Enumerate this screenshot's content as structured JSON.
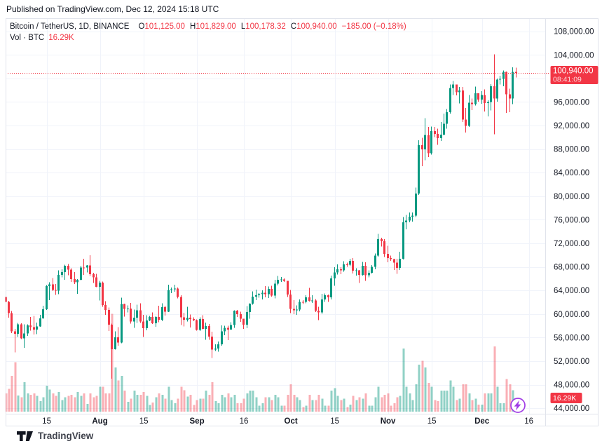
{
  "header": {
    "published": "Published on TradingView.com, Dec 12, 2024 15:18 UTC"
  },
  "legend": {
    "symbol_title": "Bitcoin / TetherUS, 1D, BINANCE",
    "ohlc": [
      {
        "label": "O",
        "value": "101,125.00"
      },
      {
        "label": "H",
        "value": "101,829.00"
      },
      {
        "label": "L",
        "value": "100,178.32"
      },
      {
        "label": "C",
        "value": "100,940.00"
      }
    ],
    "change": "−185.00 (−0.18%)",
    "volume_label": "Vol · BTC",
    "volume_value": "16.29K"
  },
  "price_label": {
    "price": "100,940.00",
    "countdown": "08:41:09"
  },
  "volume_axis_label": "16.29K",
  "price_scale": {
    "ticks": [
      108000,
      104000,
      100000,
      96000,
      92000,
      88000,
      84000,
      80000,
      76000,
      72000,
      68000,
      64000,
      60000,
      56000,
      52000,
      48000,
      44000
    ],
    "hidden_tick": 100000
  },
  "time_axis": {
    "ticks": [
      {
        "label": "15",
        "i": 13,
        "bold": false
      },
      {
        "label": "Aug",
        "i": 30,
        "bold": true
      },
      {
        "label": "15",
        "i": 44,
        "bold": false
      },
      {
        "label": "Sep",
        "i": 61,
        "bold": true
      },
      {
        "label": "16",
        "i": 76,
        "bold": false
      },
      {
        "label": "Oct",
        "i": 91,
        "bold": true
      },
      {
        "label": "15",
        "i": 105,
        "bold": false
      },
      {
        "label": "Nov",
        "i": 122,
        "bold": true
      },
      {
        "label": "15",
        "i": 136,
        "bold": false
      },
      {
        "label": "Dec",
        "i": 152,
        "bold": true
      },
      {
        "label": "16",
        "i": 167,
        "bold": false
      }
    ]
  },
  "footer": {
    "brand": "TradingView"
  },
  "colors": {
    "up": "#089981",
    "down": "#f23645",
    "up_vol": "rgba(8,153,129,0.45)",
    "down_vol": "rgba(242,54,69,0.40)",
    "grid": "#f0f3fa",
    "frame": "#e0e3eb",
    "text": "#131722",
    "accent": "#f23645",
    "purple": "#a13ce6"
  },
  "chart_data": {
    "type": "candlestick",
    "title": "Bitcoin / TetherUS, 1D, BINANCE",
    "symbol": "BTC/USDT",
    "interval": "1D",
    "exchange": "BINANCE",
    "start_date": "2024-07-02",
    "frequency": "daily",
    "last_price": 100940,
    "price_axis": {
      "min": 44000,
      "max": 108000,
      "step": 4000
    },
    "volume_unit": "K BTC",
    "last_volume": 16.29,
    "legend_position": "top-left",
    "grid": true,
    "columns": [
      "open",
      "high",
      "low",
      "close",
      "volume_kbtc"
    ],
    "candles": [
      [
        62900,
        63300,
        61700,
        62030,
        28
      ],
      [
        62030,
        62250,
        59400,
        60170,
        35
      ],
      [
        60170,
        60480,
        56780,
        57040,
        55
      ],
      [
        57040,
        57500,
        53500,
        56660,
        76
      ],
      [
        56660,
        58480,
        56080,
        58240,
        25
      ],
      [
        58240,
        58450,
        55720,
        55850,
        22
      ],
      [
        55850,
        58240,
        54260,
        56700,
        45
      ],
      [
        56700,
        58250,
        56280,
        58050,
        28
      ],
      [
        58050,
        59470,
        57170,
        57740,
        26
      ],
      [
        57740,
        59650,
        56540,
        57340,
        28
      ],
      [
        57340,
        58530,
        56570,
        57900,
        24
      ],
      [
        57900,
        59850,
        57830,
        59230,
        16
      ],
      [
        59230,
        61420,
        59210,
        60830,
        22
      ],
      [
        60830,
        64900,
        60670,
        64740,
        40
      ],
      [
        64740,
        65400,
        62370,
        65050,
        34
      ],
      [
        65050,
        66130,
        63900,
        64090,
        28
      ],
      [
        64090,
        65100,
        63250,
        63970,
        24
      ],
      [
        63970,
        67400,
        63350,
        66660,
        30
      ],
      [
        66660,
        67620,
        66250,
        67140,
        18
      ],
      [
        67140,
        68370,
        65780,
        68160,
        22
      ],
      [
        68160,
        68490,
        66600,
        67530,
        24
      ],
      [
        67530,
        67750,
        65450,
        65930,
        26
      ],
      [
        65930,
        67100,
        65080,
        65370,
        22
      ],
      [
        65370,
        65950,
        63450,
        65780,
        30
      ],
      [
        65780,
        68200,
        65730,
        67910,
        24
      ],
      [
        67910,
        69400,
        66650,
        67900,
        28
      ],
      [
        67900,
        68330,
        67060,
        68250,
        12
      ],
      [
        68250,
        69980,
        66450,
        66780,
        28
      ],
      [
        66780,
        67000,
        65300,
        66200,
        22
      ],
      [
        66200,
        66800,
        64530,
        64620,
        24
      ],
      [
        64620,
        65600,
        62300,
        65350,
        38
      ],
      [
        65350,
        65480,
        61250,
        61500,
        38
      ],
      [
        61500,
        62200,
        59850,
        60700,
        28
      ],
      [
        60700,
        61100,
        57130,
        58160,
        28
      ],
      [
        58160,
        58350,
        49000,
        54020,
        150
      ],
      [
        54020,
        57050,
        53950,
        56030,
        68
      ],
      [
        56030,
        57740,
        54590,
        55130,
        48
      ],
      [
        55130,
        62750,
        55030,
        61710,
        55
      ],
      [
        61710,
        61760,
        59560,
        60880,
        32
      ],
      [
        60880,
        61440,
        60250,
        60940,
        15
      ],
      [
        60940,
        61880,
        58350,
        58710,
        20
      ],
      [
        58710,
        60720,
        57660,
        59350,
        32
      ],
      [
        59350,
        61580,
        58490,
        60600,
        26
      ],
      [
        60600,
        61800,
        58480,
        58740,
        26
      ],
      [
        58740,
        59850,
        56100,
        57560,
        30
      ],
      [
        57560,
        59820,
        57250,
        58890,
        24
      ],
      [
        58890,
        59670,
        58790,
        59490,
        10
      ],
      [
        59490,
        60250,
        58330,
        58440,
        14
      ],
      [
        58440,
        59620,
        57850,
        59480,
        22
      ],
      [
        59480,
        61400,
        58600,
        59010,
        28
      ],
      [
        59010,
        61830,
        58800,
        61170,
        26
      ],
      [
        61170,
        61420,
        59750,
        60380,
        20
      ],
      [
        60380,
        64950,
        60340,
        64090,
        38
      ],
      [
        64090,
        64500,
        63530,
        64180,
        18
      ],
      [
        64180,
        65000,
        63780,
        64300,
        13
      ],
      [
        64300,
        64480,
        62650,
        62880,
        20
      ],
      [
        62880,
        63210,
        58100,
        59440,
        38
      ],
      [
        59440,
        60200,
        57890,
        59030,
        33
      ],
      [
        59030,
        61200,
        58750,
        59360,
        23
      ],
      [
        59360,
        59900,
        57700,
        59120,
        26
      ],
      [
        59120,
        59450,
        58760,
        58970,
        10
      ],
      [
        58970,
        59070,
        57150,
        57300,
        18
      ],
      [
        57300,
        59430,
        57130,
        59130,
        20
      ],
      [
        59130,
        59800,
        57420,
        57490,
        20
      ],
      [
        57490,
        58520,
        55600,
        57970,
        32
      ],
      [
        57970,
        58330,
        55640,
        56180,
        26
      ],
      [
        56180,
        57010,
        52550,
        53950,
        45
      ],
      [
        53950,
        54850,
        53740,
        54160,
        16
      ],
      [
        54160,
        55320,
        53620,
        54870,
        13
      ],
      [
        54870,
        58040,
        54600,
        57040,
        26
      ],
      [
        57040,
        58030,
        56410,
        57640,
        22
      ],
      [
        57640,
        58000,
        55550,
        57340,
        28
      ],
      [
        57340,
        58580,
        57330,
        58130,
        22
      ],
      [
        58130,
        60620,
        57630,
        60570,
        26
      ],
      [
        60570,
        60660,
        59470,
        60000,
        13
      ],
      [
        60000,
        60380,
        58690,
        59180,
        13
      ],
      [
        59180,
        59200,
        57500,
        58210,
        20
      ],
      [
        58210,
        61320,
        57610,
        60310,
        28
      ],
      [
        60310,
        61790,
        59180,
        61760,
        32
      ],
      [
        61760,
        63850,
        61550,
        62940,
        32
      ],
      [
        62940,
        64130,
        62350,
        63200,
        22
      ],
      [
        63200,
        63560,
        62760,
        63350,
        9
      ],
      [
        63350,
        64000,
        62450,
        63580,
        13
      ],
      [
        63580,
        64750,
        62820,
        63340,
        22
      ],
      [
        63340,
        64680,
        62700,
        64270,
        22
      ],
      [
        64270,
        64820,
        62950,
        63150,
        18
      ],
      [
        63150,
        65800,
        62670,
        65180,
        26
      ],
      [
        65180,
        66490,
        64850,
        65790,
        22
      ],
      [
        65790,
        66260,
        65440,
        65890,
        9
      ],
      [
        65890,
        66070,
        65430,
        65630,
        9
      ],
      [
        65630,
        65630,
        62860,
        63330,
        26
      ],
      [
        63330,
        64100,
        60170,
        60840,
        42
      ],
      [
        60840,
        62380,
        60000,
        60650,
        26
      ],
      [
        60650,
        61450,
        59850,
        60750,
        22
      ],
      [
        60750,
        62480,
        60460,
        62080,
        18
      ],
      [
        62080,
        62370,
        61690,
        62060,
        7
      ],
      [
        62060,
        63200,
        61810,
        62820,
        9
      ],
      [
        62820,
        64450,
        62100,
        62220,
        26
      ],
      [
        62220,
        63200,
        61860,
        62280,
        18
      ],
      [
        62280,
        62540,
        60310,
        60580,
        18
      ],
      [
        60580,
        61200,
        58950,
        60280,
        26
      ],
      [
        60280,
        63400,
        60060,
        62450,
        20
      ],
      [
        62450,
        63480,
        62050,
        63190,
        9
      ],
      [
        63190,
        63290,
        62050,
        62850,
        9
      ],
      [
        62850,
        66500,
        62450,
        66050,
        32
      ],
      [
        66050,
        67950,
        64800,
        67040,
        36
      ],
      [
        67040,
        68420,
        66720,
        67620,
        24
      ],
      [
        67620,
        67940,
        66750,
        67400,
        18
      ],
      [
        67400,
        68980,
        67170,
        68420,
        20
      ],
      [
        68420,
        68700,
        68010,
        68370,
        7
      ],
      [
        68370,
        69400,
        68110,
        69030,
        11
      ],
      [
        69030,
        69520,
        66850,
        67370,
        24
      ],
      [
        67370,
        67800,
        66550,
        67420,
        18
      ],
      [
        67420,
        67470,
        65260,
        66650,
        22
      ],
      [
        66650,
        68850,
        66500,
        68170,
        20
      ],
      [
        68170,
        68800,
        65600,
        66600,
        28
      ],
      [
        66600,
        67430,
        66200,
        67020,
        9
      ],
      [
        67020,
        68300,
        66880,
        68000,
        9
      ],
      [
        68000,
        70300,
        67580,
        69910,
        22
      ],
      [
        69910,
        73600,
        69740,
        72720,
        38
      ],
      [
        72720,
        72970,
        71450,
        72340,
        22
      ],
      [
        72340,
        72700,
        69690,
        70220,
        26
      ],
      [
        70220,
        71600,
        68800,
        69480,
        28
      ],
      [
        69480,
        69910,
        69000,
        69330,
        9
      ],
      [
        69330,
        69390,
        67480,
        68740,
        13
      ],
      [
        68740,
        69370,
        66830,
        67810,
        22
      ],
      [
        67810,
        70550,
        67470,
        69360,
        24
      ],
      [
        69360,
        76460,
        69280,
        75570,
        97
      ],
      [
        75570,
        76850,
        74400,
        75900,
        38
      ],
      [
        75900,
        77240,
        75570,
        76510,
        28
      ],
      [
        76510,
        77270,
        75710,
        76680,
        18
      ],
      [
        76680,
        81480,
        76480,
        80430,
        42
      ],
      [
        80430,
        89530,
        80220,
        88700,
        72
      ],
      [
        88700,
        89940,
        85100,
        87950,
        78
      ],
      [
        87950,
        93270,
        86140,
        90380,
        68
      ],
      [
        90380,
        91790,
        86670,
        87320,
        44
      ],
      [
        87320,
        91850,
        87070,
        91030,
        38
      ],
      [
        91030,
        91770,
        90060,
        90560,
        18
      ],
      [
        90560,
        91450,
        88720,
        89850,
        16
      ],
      [
        89850,
        92590,
        89370,
        90480,
        32
      ],
      [
        90480,
        94050,
        90370,
        92310,
        32
      ],
      [
        92310,
        94830,
        91500,
        94280,
        32
      ],
      [
        94280,
        98950,
        94040,
        98380,
        48
      ],
      [
        98380,
        99590,
        97170,
        98950,
        38
      ],
      [
        98950,
        99000,
        97150,
        97690,
        18
      ],
      [
        97690,
        98560,
        95750,
        97940,
        20
      ],
      [
        97940,
        98540,
        92620,
        93010,
        42
      ],
      [
        93010,
        94980,
        90790,
        91970,
        42
      ],
      [
        91970,
        97190,
        91790,
        95860,
        28
      ],
      [
        95860,
        96570,
        94640,
        95640,
        18
      ],
      [
        95640,
        98590,
        95380,
        97460,
        20
      ],
      [
        97460,
        97470,
        96080,
        96400,
        11
      ],
      [
        96400,
        97830,
        95690,
        97180,
        11
      ],
      [
        97180,
        98120,
        94390,
        95840,
        28
      ],
      [
        95840,
        96300,
        93580,
        96000,
        28
      ],
      [
        96000,
        99060,
        94590,
        98680,
        28
      ],
      [
        98680,
        104090,
        90500,
        96590,
        100
      ],
      [
        96590,
        99980,
        96080,
        99830,
        38
      ],
      [
        99830,
        100440,
        98970,
        99920,
        13
      ],
      [
        99920,
        101350,
        98660,
        101110,
        13
      ],
      [
        101110,
        101200,
        94150,
        97280,
        50
      ],
      [
        97280,
        98270,
        94250,
        96590,
        42
      ],
      [
        96590,
        101890,
        95660,
        101125,
        33
      ],
      [
        101125,
        101829,
        100178,
        100940,
        16.29
      ]
    ]
  }
}
